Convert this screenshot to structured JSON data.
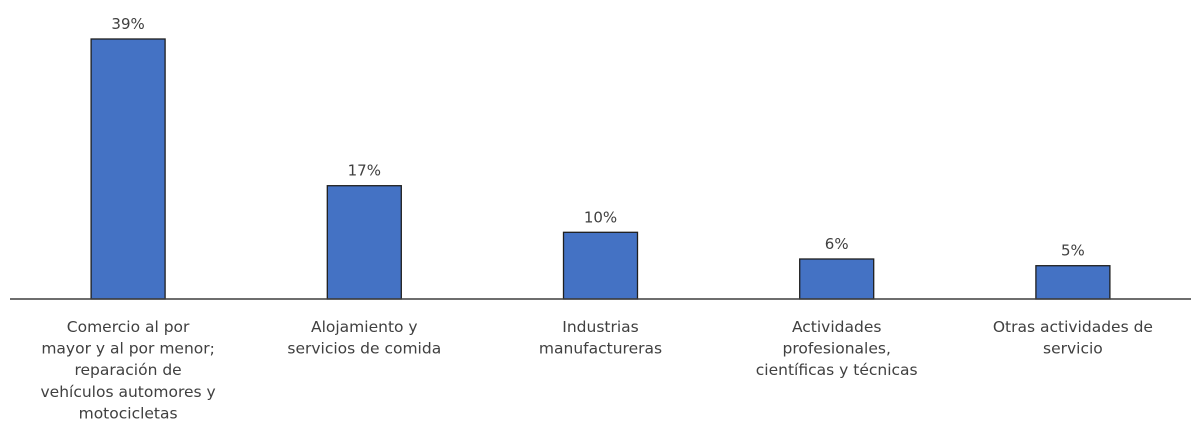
{
  "chart_data": {
    "type": "bar",
    "title": "",
    "xlabel": "",
    "ylabel": "",
    "categories": [
      "Comercio al por mayor y al por menor; reparación de vehículos automores y motocicletas",
      "Alojamiento y servicios de comida",
      "Industrias manufactureras",
      "Actividades profesionales, científicas y técnicas",
      "Otras actividades de servicio"
    ],
    "category_lines": [
      [
        "Comercio al por",
        "mayor y al por menor;",
        "reparación de",
        "vehículos automores y",
        "motocicletas"
      ],
      [
        "Alojamiento y",
        "servicios de comida"
      ],
      [
        "Industrias",
        "manufactureras"
      ],
      [
        "Actividades",
        "profesionales,",
        "científicas y técnicas"
      ],
      [
        "Otras actividades de",
        "servicio"
      ]
    ],
    "values": [
      39,
      17,
      10,
      6,
      5
    ],
    "value_labels": [
      "39%",
      "17%",
      "10%",
      "6%",
      "5%"
    ],
    "unit": "%",
    "ylim": [
      0,
      39
    ],
    "grid": false,
    "legend": "none",
    "bar_color": "#4472c4"
  }
}
